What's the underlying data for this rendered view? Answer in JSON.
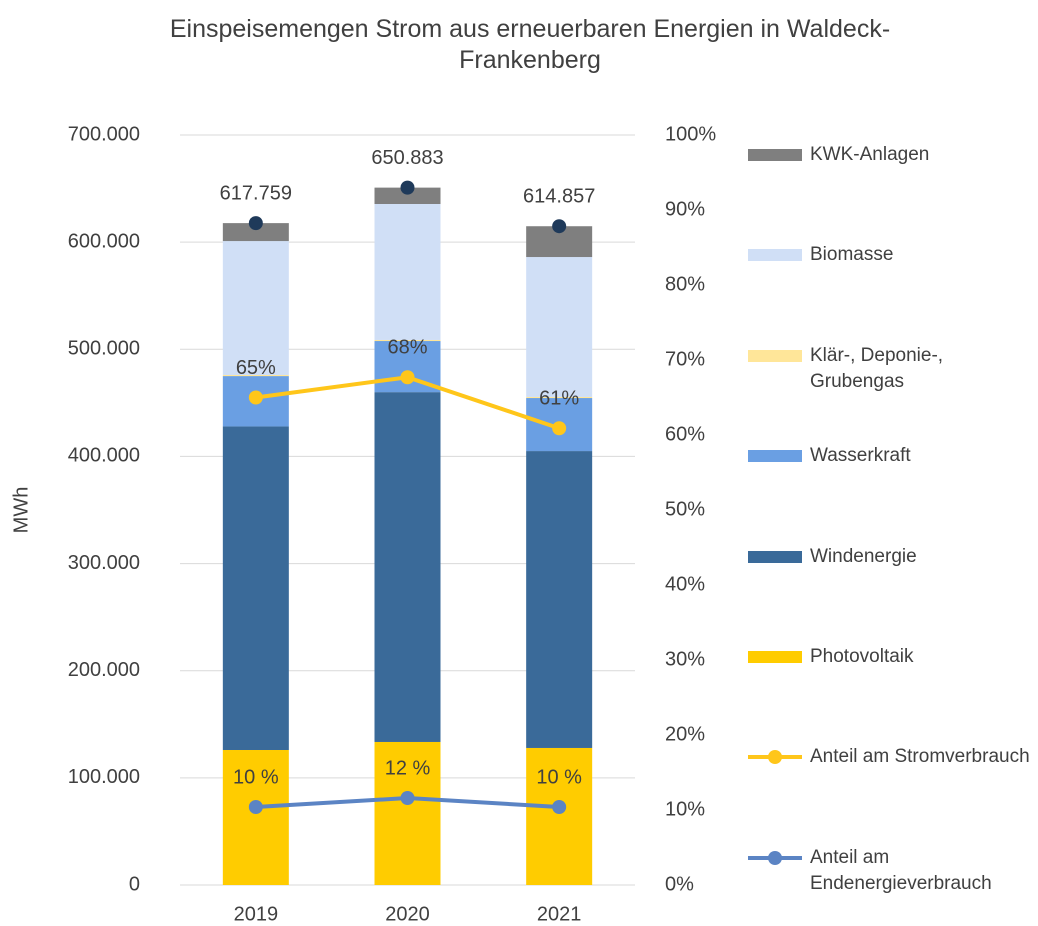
{
  "chart_data": {
    "type": "bar",
    "title": "Einspeisemengen Strom aus erneuerbaren Energien in Waldeck-Frankenberg",
    "ylabel": "MWh",
    "categories": [
      "2019",
      "2020",
      "2021"
    ],
    "series": [
      {
        "name": "Photovoltaik",
        "color": "#FFCC00",
        "values": [
          126000,
          133500,
          127900
        ]
      },
      {
        "name": "Windenergie",
        "color": "#3A6A99",
        "values": [
          302000,
          326500,
          277100
        ]
      },
      {
        "name": "Wasserkraft",
        "color": "#6A9FE3",
        "values": [
          47000,
          47700,
          49500
        ]
      },
      {
        "name": "Klär-, Deponie-, Grubengas",
        "color": "#FFE699",
        "values": [
          1000,
          1000,
          1000
        ]
      },
      {
        "name": "Biomasse",
        "color": "#D0DFF6",
        "values": [
          125000,
          126900,
          130600
        ]
      },
      {
        "name": "KWK-Anlagen",
        "color": "#7F7F7F",
        "values": [
          16759,
          15283,
          28757
        ]
      },
      {
        "name": "Anteil am Stromverbrauch",
        "type": "line",
        "axis": "y2",
        "color": "#FFC61A",
        "values": [
          65,
          67.7,
          60.9
        ],
        "value_labels": [
          "65%",
          "68%",
          "61%"
        ]
      },
      {
        "name": "Anteil am Endenergieverbrauch",
        "type": "line",
        "axis": "y2",
        "color": "#5B84C4",
        "values": [
          10.4,
          11.6,
          10.4
        ],
        "value_labels": [
          "10 %",
          "12 %",
          "10 %"
        ]
      }
    ],
    "totals": {
      "color": "#1F3A5A",
      "values": [
        617759,
        650883,
        614857
      ],
      "value_labels": [
        "617.759",
        "650.883",
        "614.857"
      ]
    },
    "ylim": [
      0,
      700000
    ],
    "yticks": [
      0,
      {
        "value": 100000,
        "label": "100.000"
      },
      {
        "value": 200000,
        "label": "200.000"
      },
      {
        "value": 300000,
        "label": "300.000"
      },
      {
        "value": 400000,
        "label": "400.000"
      },
      {
        "value": 500000,
        "label": "500.000"
      },
      {
        "value": 600000,
        "label": "600.000"
      },
      {
        "value": 700000,
        "label": "700.000"
      }
    ],
    "y2lim": [
      0,
      100
    ],
    "y2ticks": [
      {
        "value": 0,
        "label": "0%"
      },
      {
        "value": 10,
        "label": "10%"
      },
      {
        "value": 20,
        "label": "20%"
      },
      {
        "value": 30,
        "label": "30%"
      },
      {
        "value": 40,
        "label": "40%"
      },
      {
        "value": 50,
        "label": "50%"
      },
      {
        "value": 60,
        "label": "60%"
      },
      {
        "value": 70,
        "label": "70%"
      },
      {
        "value": 80,
        "label": "80%"
      },
      {
        "value": 90,
        "label": "90%"
      },
      {
        "value": 100,
        "label": "100%"
      }
    ],
    "grid": true
  }
}
